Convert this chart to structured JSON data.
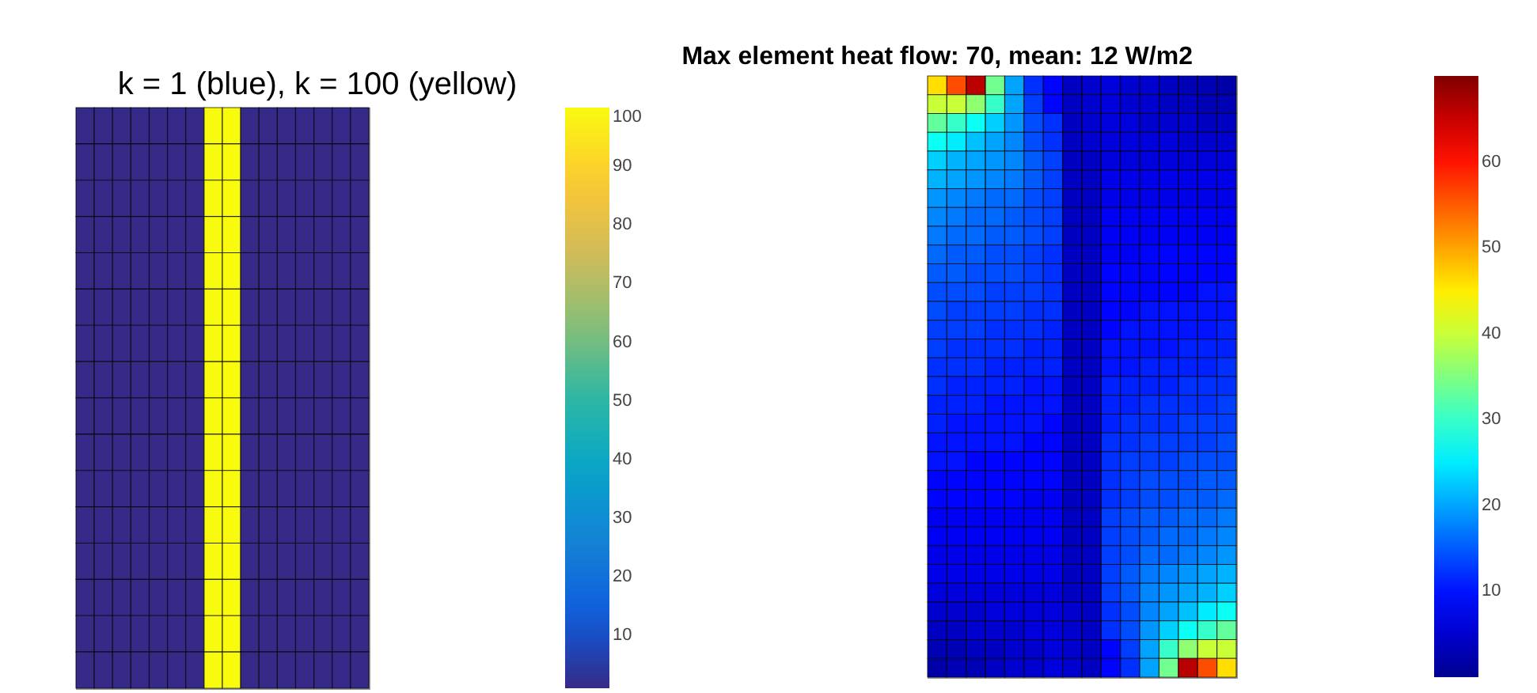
{
  "chart_data": [
    {
      "type": "heatmap",
      "title": "k = 1 (blue), k = 100 (yellow)",
      "tick_labels": false,
      "categories": [
        null,
        null,
        null,
        null,
        null,
        null,
        null,
        null,
        null,
        null,
        null,
        null,
        null,
        null,
        null,
        null
      ],
      "y_categories": [
        null,
        null,
        null,
        null,
        null,
        null,
        null,
        null,
        null,
        null,
        null,
        null,
        null,
        null,
        null,
        null
      ],
      "cells": [
        [
          1,
          1,
          1,
          1,
          1,
          1,
          1,
          100,
          100,
          1,
          1,
          1,
          1,
          1,
          1,
          1
        ],
        [
          1,
          1,
          1,
          1,
          1,
          1,
          1,
          100,
          100,
          1,
          1,
          1,
          1,
          1,
          1,
          1
        ],
        [
          1,
          1,
          1,
          1,
          1,
          1,
          1,
          100,
          100,
          1,
          1,
          1,
          1,
          1,
          1,
          1
        ],
        [
          1,
          1,
          1,
          1,
          1,
          1,
          1,
          100,
          100,
          1,
          1,
          1,
          1,
          1,
          1,
          1
        ],
        [
          1,
          1,
          1,
          1,
          1,
          1,
          1,
          100,
          100,
          1,
          1,
          1,
          1,
          1,
          1,
          1
        ],
        [
          1,
          1,
          1,
          1,
          1,
          1,
          1,
          100,
          100,
          1,
          1,
          1,
          1,
          1,
          1,
          1
        ],
        [
          1,
          1,
          1,
          1,
          1,
          1,
          1,
          100,
          100,
          1,
          1,
          1,
          1,
          1,
          1,
          1
        ],
        [
          1,
          1,
          1,
          1,
          1,
          1,
          1,
          100,
          100,
          1,
          1,
          1,
          1,
          1,
          1,
          1
        ],
        [
          1,
          1,
          1,
          1,
          1,
          1,
          1,
          100,
          100,
          1,
          1,
          1,
          1,
          1,
          1,
          1
        ],
        [
          1,
          1,
          1,
          1,
          1,
          1,
          1,
          100,
          100,
          1,
          1,
          1,
          1,
          1,
          1,
          1
        ],
        [
          1,
          1,
          1,
          1,
          1,
          1,
          1,
          100,
          100,
          1,
          1,
          1,
          1,
          1,
          1,
          1
        ],
        [
          1,
          1,
          1,
          1,
          1,
          1,
          1,
          100,
          100,
          1,
          1,
          1,
          1,
          1,
          1,
          1
        ],
        [
          1,
          1,
          1,
          1,
          1,
          1,
          1,
          100,
          100,
          1,
          1,
          1,
          1,
          1,
          1,
          1
        ],
        [
          1,
          1,
          1,
          1,
          1,
          1,
          1,
          100,
          100,
          1,
          1,
          1,
          1,
          1,
          1,
          1
        ],
        [
          1,
          1,
          1,
          1,
          1,
          1,
          1,
          100,
          100,
          1,
          1,
          1,
          1,
          1,
          1,
          1
        ],
        [
          1,
          1,
          1,
          1,
          1,
          1,
          1,
          100,
          100,
          1,
          1,
          1,
          1,
          1,
          1,
          1
        ]
      ],
      "clim": [
        1,
        100
      ],
      "cticks": [
        10,
        20,
        30,
        40,
        50,
        60,
        70,
        80,
        90,
        100
      ]
    },
    {
      "type": "heatmap",
      "title": "Max element heat flow: 70, mean: 12 W/m2",
      "tick_labels": false,
      "categories": [
        null,
        null,
        null,
        null,
        null,
        null,
        null,
        null,
        null,
        null,
        null,
        null,
        null,
        null,
        null,
        null
      ],
      "y_categories": [
        null,
        null,
        null,
        null,
        null,
        null,
        null,
        null,
        null,
        null,
        null,
        null,
        null,
        null,
        null,
        null,
        null,
        null,
        null,
        null,
        null,
        null,
        null,
        null,
        null,
        null,
        null,
        null,
        null,
        null,
        null,
        null
      ],
      "cells": [
        [
          46,
          56,
          66,
          34,
          20,
          12,
          9,
          4,
          5,
          6,
          5,
          5,
          4,
          3,
          3,
          2
        ],
        [
          40,
          40,
          36,
          30,
          20,
          13,
          9,
          4,
          5,
          6,
          5,
          5,
          4,
          4,
          3,
          3
        ],
        [
          33,
          30,
          27,
          23,
          19,
          14,
          12,
          4,
          5,
          6,
          6,
          5,
          5,
          5,
          4,
          4
        ],
        [
          27,
          25,
          22,
          20,
          18,
          14,
          12,
          4,
          5,
          6,
          6,
          6,
          6,
          5,
          5,
          5
        ],
        [
          23,
          21,
          20,
          19,
          18,
          15,
          13,
          4,
          4,
          6,
          6,
          6,
          6,
          6,
          6,
          6
        ],
        [
          21,
          20,
          19,
          18,
          17,
          15,
          13,
          4,
          4,
          7,
          7,
          7,
          7,
          7,
          7,
          7
        ],
        [
          19,
          18,
          17,
          16,
          16,
          14,
          13,
          4,
          4,
          7,
          7,
          7,
          7,
          7,
          7,
          7
        ],
        [
          18,
          17,
          16,
          16,
          15,
          14,
          13,
          4,
          4,
          8,
          8,
          8,
          8,
          8,
          8,
          8
        ],
        [
          17,
          16,
          16,
          15,
          15,
          14,
          13,
          4,
          4,
          8,
          8,
          8,
          8,
          8,
          8,
          8
        ],
        [
          16,
          15,
          15,
          14,
          14,
          13,
          12,
          4,
          4,
          8,
          8,
          9,
          9,
          9,
          9,
          9
        ],
        [
          15,
          15,
          14,
          14,
          14,
          13,
          12,
          4,
          4,
          9,
          9,
          9,
          9,
          9,
          9,
          9
        ],
        [
          14,
          14,
          14,
          13,
          13,
          13,
          12,
          4,
          4,
          9,
          9,
          9,
          9,
          9,
          10,
          10
        ],
        [
          14,
          13,
          13,
          13,
          13,
          12,
          12,
          4,
          4,
          9,
          9,
          10,
          10,
          10,
          10,
          10
        ],
        [
          13,
          13,
          13,
          12,
          12,
          12,
          11,
          4,
          4,
          9,
          10,
          10,
          10,
          10,
          10,
          11
        ],
        [
          13,
          12,
          12,
          12,
          12,
          11,
          11,
          4,
          4,
          10,
          10,
          10,
          10,
          11,
          11,
          11
        ],
        [
          12,
          12,
          12,
          11,
          11,
          11,
          11,
          4,
          4,
          10,
          10,
          11,
          11,
          11,
          11,
          12
        ],
        [
          12,
          11,
          11,
          11,
          11,
          10,
          10,
          4,
          4,
          11,
          11,
          11,
          11,
          12,
          12,
          12
        ],
        [
          11,
          11,
          11,
          10,
          10,
          10,
          10,
          4,
          4,
          11,
          11,
          12,
          12,
          12,
          12,
          13
        ],
        [
          11,
          10,
          10,
          10,
          10,
          10,
          9,
          4,
          4,
          11,
          12,
          12,
          12,
          13,
          13,
          13
        ],
        [
          10,
          10,
          10,
          10,
          10,
          9,
          9,
          4,
          4,
          12,
          12,
          13,
          13,
          13,
          13,
          14
        ],
        [
          10,
          10,
          9,
          9,
          9,
          9,
          9,
          4,
          4,
          12,
          13,
          13,
          13,
          14,
          14,
          14
        ],
        [
          9,
          9,
          9,
          9,
          9,
          9,
          9,
          4,
          4,
          12,
          13,
          14,
          14,
          14,
          15,
          15
        ],
        [
          9,
          9,
          9,
          9,
          9,
          8,
          8,
          4,
          4,
          12,
          13,
          14,
          14,
          15,
          15,
          16
        ],
        [
          8,
          8,
          8,
          8,
          8,
          8,
          8,
          4,
          4,
          13,
          14,
          15,
          15,
          16,
          16,
          17
        ],
        [
          8,
          8,
          8,
          8,
          8,
          8,
          8,
          4,
          4,
          13,
          14,
          15,
          16,
          16,
          17,
          18
        ],
        [
          7,
          7,
          7,
          7,
          7,
          7,
          7,
          4,
          4,
          13,
          14,
          16,
          16,
          17,
          18,
          19
        ],
        [
          7,
          7,
          7,
          7,
          7,
          7,
          7,
          4,
          4,
          13,
          15,
          17,
          18,
          19,
          20,
          21
        ],
        [
          6,
          6,
          6,
          6,
          6,
          6,
          6,
          4,
          4,
          13,
          15,
          18,
          19,
          20,
          21,
          23
        ],
        [
          5,
          5,
          5,
          6,
          6,
          6,
          6,
          5,
          4,
          12,
          14,
          18,
          20,
          22,
          25,
          27
        ],
        [
          4,
          4,
          5,
          5,
          5,
          6,
          6,
          5,
          4,
          12,
          14,
          19,
          23,
          27,
          30,
          33
        ],
        [
          3,
          3,
          4,
          4,
          5,
          5,
          6,
          5,
          4,
          9,
          13,
          20,
          30,
          36,
          40,
          40
        ],
        [
          2,
          3,
          3,
          4,
          5,
          5,
          6,
          5,
          4,
          9,
          12,
          20,
          34,
          66,
          56,
          46
        ]
      ],
      "clim": [
        0,
        70
      ],
      "cticks": [
        10,
        20,
        30,
        40,
        50,
        60
      ]
    }
  ]
}
